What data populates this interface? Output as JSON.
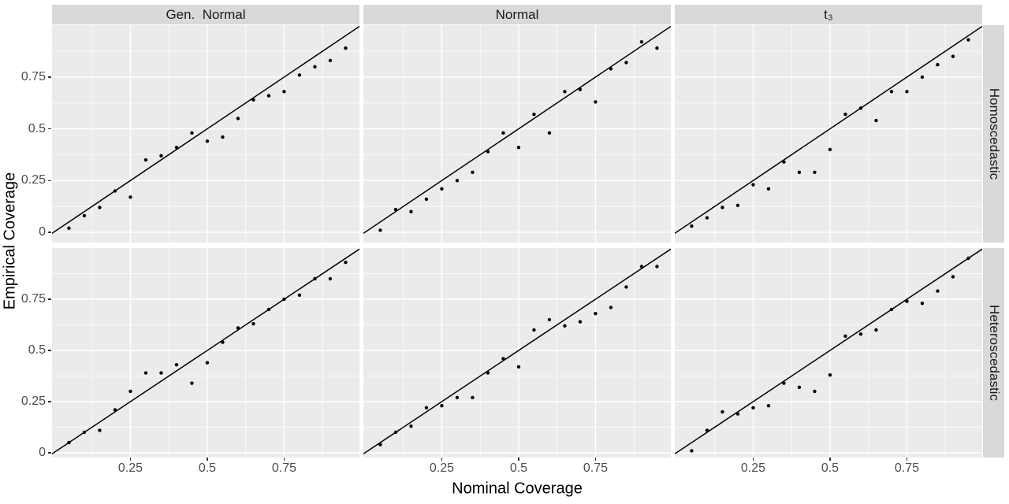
{
  "chart_data": {
    "type": "scatter",
    "title": "",
    "xlabel": "Nominal Coverage",
    "ylabel": "Empirical Coverage",
    "col_facets": [
      "Gen.  Normal",
      "Normal",
      "t₃"
    ],
    "row_facets": [
      "Homoscedastic",
      "Heteroscedastic"
    ],
    "x_ticks": [
      "0.25",
      "0.5",
      "0.75"
    ],
    "x_tick_values": [
      0.25,
      0.5,
      0.75
    ],
    "y_ticks": [
      "0",
      "0.25",
      "0.5",
      "0.75"
    ],
    "y_tick_values": [
      0,
      0.25,
      0.5,
      0.75
    ],
    "xlim": [
      -0.005,
      0.995
    ],
    "ylim": [
      -0.05,
      1.0
    ],
    "grid": "on",
    "legend": "none",
    "reference_line": "y = x",
    "x": [
      0.05,
      0.1,
      0.15,
      0.2,
      0.25,
      0.3,
      0.35,
      0.4,
      0.45,
      0.5,
      0.55,
      0.6,
      0.65,
      0.7,
      0.75,
      0.8,
      0.85,
      0.9,
      0.95
    ],
    "panels": [
      {
        "row": "Homoscedastic",
        "col": "Gen.  Normal",
        "y": [
          0.02,
          0.08,
          0.12,
          0.2,
          0.17,
          0.35,
          0.37,
          0.41,
          0.48,
          0.44,
          0.46,
          0.55,
          0.64,
          0.66,
          0.68,
          0.76,
          0.8,
          0.83,
          0.89
        ]
      },
      {
        "row": "Homoscedastic",
        "col": "Normal",
        "y": [
          0.01,
          0.11,
          0.1,
          0.16,
          0.21,
          0.25,
          0.29,
          0.39,
          0.48,
          0.41,
          0.57,
          0.48,
          0.68,
          0.69,
          0.63,
          0.79,
          0.82,
          0.92,
          0.89
        ]
      },
      {
        "row": "Homoscedastic",
        "col": "t₃",
        "y": [
          0.03,
          0.07,
          0.12,
          0.13,
          0.23,
          0.21,
          0.34,
          0.29,
          0.29,
          0.4,
          0.57,
          0.6,
          0.54,
          0.68,
          0.68,
          0.75,
          0.81,
          0.85,
          0.93
        ]
      },
      {
        "row": "Heteroscedastic",
        "col": "Gen.  Normal",
        "y": [
          0.05,
          0.1,
          0.11,
          0.21,
          0.3,
          0.39,
          0.39,
          0.43,
          0.34,
          0.44,
          0.54,
          0.61,
          0.63,
          0.7,
          0.75,
          0.77,
          0.85,
          0.85,
          0.93
        ]
      },
      {
        "row": "Heteroscedastic",
        "col": "Normal",
        "y": [
          0.04,
          0.1,
          0.13,
          0.22,
          0.23,
          0.27,
          0.27,
          0.39,
          0.46,
          0.42,
          0.6,
          0.65,
          0.62,
          0.64,
          0.68,
          0.71,
          0.81,
          0.91,
          0.91
        ]
      },
      {
        "row": "Heteroscedastic",
        "col": "t₃",
        "y": [
          0.01,
          0.11,
          0.2,
          0.19,
          0.22,
          0.23,
          0.34,
          0.32,
          0.3,
          0.38,
          0.57,
          0.58,
          0.6,
          0.7,
          0.74,
          0.73,
          0.79,
          0.86,
          0.95
        ]
      }
    ],
    "colors": {
      "panel_bg": "#EBEBEB",
      "strip_bg": "#D9D9D9",
      "strip_text": "#1A1A1A",
      "grid_major": "#FFFFFF",
      "grid_minor": "#FFFFFF",
      "point": "#000000",
      "ref_line": "#000000",
      "tick_label": "#4D4D4D",
      "tick_mark": "#333333",
      "axis_title": "#000000",
      "background": "#FFFFFF"
    }
  }
}
